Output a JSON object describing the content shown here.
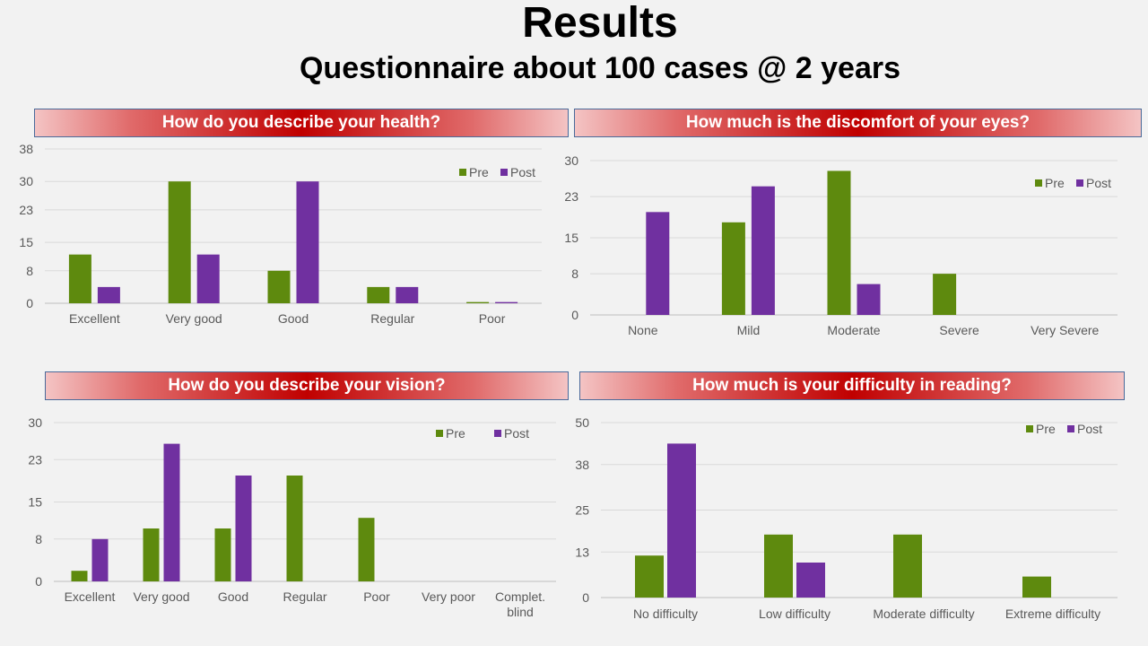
{
  "header": {
    "title": "Results",
    "subtitle": "Questionnaire about 100 cases @ 2 years"
  },
  "colors": {
    "pre": "#5e8a0e",
    "post": "#7030a0",
    "grid": "#d9d9d9",
    "axis_text": "#595959"
  },
  "chart_data": [
    {
      "type": "bar",
      "title": "How do you describe your health?",
      "categories": [
        "Excellent",
        "Very good",
        "Good",
        "Regular",
        "Poor"
      ],
      "series": [
        {
          "name": "Pre",
          "values": [
            12,
            30,
            8,
            4,
            0.3
          ]
        },
        {
          "name": "Post",
          "values": [
            4,
            12,
            30,
            4,
            0.3
          ]
        }
      ],
      "yticks": [
        "0",
        "8",
        "15",
        "23",
        "30",
        "38"
      ],
      "ylim": [
        0,
        38
      ],
      "legend": "top-right",
      "grid": true
    },
    {
      "type": "bar",
      "title": "How much is the discomfort of your eyes?",
      "categories": [
        "None",
        "Mild",
        "Moderate",
        "Severe",
        "Very Severe"
      ],
      "series": [
        {
          "name": "Pre",
          "values": [
            0,
            18,
            28,
            8,
            0
          ]
        },
        {
          "name": "Post",
          "values": [
            20,
            25,
            6,
            0,
            0
          ]
        }
      ],
      "yticks": [
        "0",
        "8",
        "15",
        "23",
        "30"
      ],
      "ylim": [
        0,
        30
      ],
      "legend": "top-right",
      "grid": true
    },
    {
      "type": "bar",
      "title": "How do you describe your vision?",
      "categories": [
        "Excellent",
        "Very good",
        "Good",
        "Regular",
        "Poor",
        "Very poor",
        "Complet. blind"
      ],
      "series": [
        {
          "name": "Pre",
          "values": [
            2,
            10,
            10,
            20,
            12,
            0,
            0
          ]
        },
        {
          "name": "Post",
          "values": [
            8,
            26,
            20,
            0,
            0,
            0,
            0
          ]
        }
      ],
      "yticks": [
        "0",
        "8",
        "15",
        "23",
        "30"
      ],
      "ylim": [
        0,
        30
      ],
      "legend": "top-right",
      "grid": true
    },
    {
      "type": "bar",
      "title": "How much is your difficulty in reading?",
      "categories": [
        "No difficulty",
        "Low difficulty",
        "Moderate difficulty",
        "Extreme difficulty"
      ],
      "series": [
        {
          "name": "Pre",
          "values": [
            12,
            18,
            18,
            6
          ]
        },
        {
          "name": "Post",
          "values": [
            44,
            10,
            0,
            0
          ]
        }
      ],
      "yticks": [
        "0",
        "13",
        "25",
        "38",
        "50"
      ],
      "ylim": [
        0,
        50
      ],
      "legend": "top-right",
      "grid": true
    }
  ]
}
